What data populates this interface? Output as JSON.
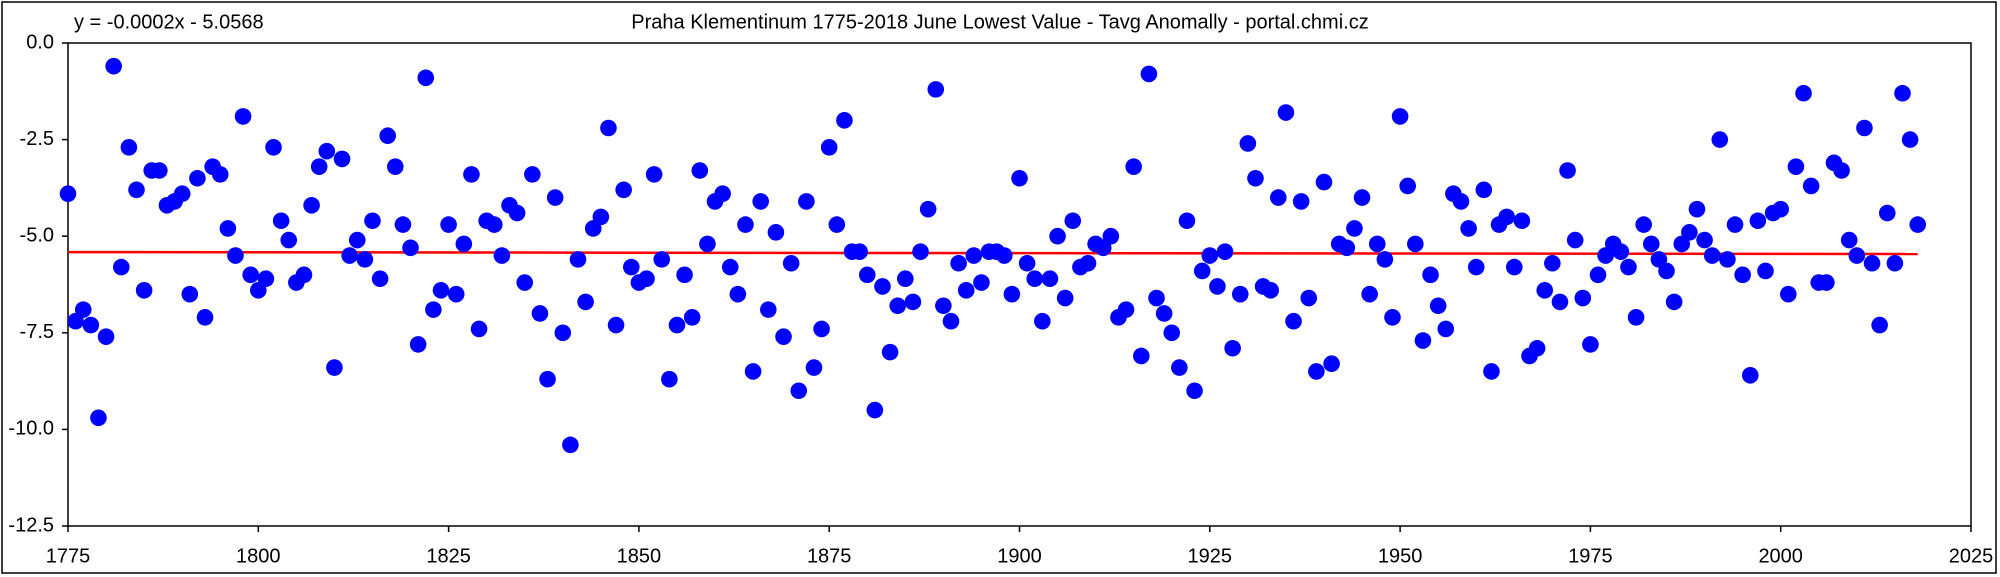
{
  "chart_data": {
    "type": "scatter",
    "title": "Praha Klementinum 1775-2018 June Lowest Value - Tavg Anomally - portal.chmi.cz",
    "series": [
      {
        "color": "#0000ff",
        "x": [
          1775,
          1776,
          1777,
          1778,
          1779,
          1780,
          1781,
          1782,
          1783,
          1784,
          1785,
          1786,
          1787,
          1788,
          1789,
          1790,
          1791,
          1792,
          1793,
          1794,
          1795,
          1796,
          1797,
          1798,
          1799,
          1800,
          1801,
          1802,
          1803,
          1804,
          1805,
          1806,
          1807,
          1808,
          1809,
          1810,
          1811,
          1812,
          1813,
          1814,
          1815,
          1816,
          1817,
          1818,
          1819,
          1820,
          1821,
          1822,
          1823,
          1824,
          1825,
          1826,
          1827,
          1828,
          1829,
          1830,
          1831,
          1832,
          1833,
          1834,
          1835,
          1836,
          1837,
          1838,
          1839,
          1840,
          1841,
          1842,
          1843,
          1844,
          1845,
          1846,
          1847,
          1848,
          1849,
          1850,
          1851,
          1852,
          1853,
          1854,
          1855,
          1856,
          1857,
          1858,
          1859,
          1860,
          1861,
          1862,
          1863,
          1864,
          1865,
          1866,
          1867,
          1868,
          1869,
          1870,
          1871,
          1872,
          1873,
          1874,
          1875,
          1876,
          1877,
          1878,
          1879,
          1880,
          1881,
          1882,
          1883,
          1884,
          1885,
          1886,
          1887,
          1888,
          1889,
          1890,
          1891,
          1892,
          1893,
          1894,
          1895,
          1896,
          1897,
          1898,
          1899,
          1900,
          1901,
          1902,
          1903,
          1904,
          1905,
          1906,
          1907,
          1908,
          1909,
          1910,
          1911,
          1912,
          1913,
          1914,
          1915,
          1916,
          1917,
          1918,
          1919,
          1920,
          1921,
          1922,
          1923,
          1924,
          1925,
          1926,
          1927,
          1928,
          1929,
          1930,
          1931,
          1932,
          1933,
          1934,
          1935,
          1936,
          1937,
          1938,
          1939,
          1940,
          1941,
          1942,
          1943,
          1944,
          1945,
          1946,
          1947,
          1948,
          1949,
          1950,
          1951,
          1952,
          1953,
          1954,
          1955,
          1956,
          1957,
          1958,
          1959,
          1960,
          1961,
          1962,
          1963,
          1964,
          1965,
          1966,
          1967,
          1968,
          1969,
          1970,
          1971,
          1972,
          1973,
          1974,
          1975,
          1976,
          1977,
          1978,
          1979,
          1980,
          1981,
          1982,
          1983,
          1984,
          1985,
          1986,
          1987,
          1988,
          1989,
          1990,
          1991,
          1992,
          1993,
          1994,
          1995,
          1996,
          1997,
          1998,
          1999,
          2000,
          2001,
          2002,
          2003,
          2004,
          2005,
          2006,
          2007,
          2008,
          2009,
          2010,
          2011,
          2012,
          2013,
          2014,
          2015,
          2016,
          2017,
          2018
        ],
        "values": [
          -3.9,
          -7.2,
          -6.9,
          -7.3,
          -9.7,
          -7.6,
          -0.6,
          -5.8,
          -2.7,
          -3.8,
          -6.4,
          -3.3,
          -3.3,
          -4.2,
          -4.1,
          -3.9,
          -6.5,
          -3.5,
          -7.1,
          -3.2,
          -3.4,
          -4.8,
          -5.5,
          -1.9,
          -6.0,
          -6.4,
          -6.1,
          -2.7,
          -4.6,
          -5.1,
          -6.2,
          -6.0,
          -4.2,
          -3.2,
          -2.8,
          -8.4,
          -3.0,
          -5.5,
          -5.1,
          -5.6,
          -4.6,
          -6.1,
          -2.4,
          -3.2,
          -4.7,
          -5.3,
          -7.8,
          -0.9,
          -6.9,
          -6.4,
          -4.7,
          -6.5,
          -5.2,
          -3.4,
          -7.4,
          -4.6,
          -4.7,
          -5.5,
          -4.2,
          -4.4,
          -6.2,
          -3.4,
          -7.0,
          -8.7,
          -4.0,
          -7.5,
          -10.4,
          -5.6,
          -6.7,
          -4.8,
          -4.5,
          -2.2,
          -7.3,
          -3.8,
          -5.8,
          -6.2,
          -6.1,
          -3.4,
          -5.6,
          -8.7,
          -7.3,
          -6.0,
          -7.1,
          -3.3,
          -5.2,
          -4.1,
          -3.9,
          -5.8,
          -6.5,
          -4.7,
          -8.5,
          -4.1,
          -6.9,
          -4.9,
          -7.6,
          -5.7,
          -9.0,
          -4.1,
          -8.4,
          -7.4,
          -2.7,
          -4.7,
          -2.0,
          -5.4,
          -5.4,
          -6.0,
          -9.5,
          -6.3,
          -8.0,
          -6.8,
          -6.1,
          -6.7,
          -5.4,
          -4.3,
          -1.2,
          -6.8,
          -7.2,
          -5.7,
          -6.4,
          -5.5,
          -6.2,
          -5.4,
          -5.4,
          -5.5,
          -6.5,
          -3.5,
          -5.7,
          -6.1,
          -7.2,
          -6.1,
          -5.0,
          -6.6,
          -4.6,
          -5.8,
          -5.7,
          -5.2,
          -5.3,
          -5.0,
          -7.1,
          -6.9,
          -3.2,
          -8.1,
          -0.8,
          -6.6,
          -7.0,
          -7.5,
          -8.4,
          -4.6,
          -9.0,
          -5.9,
          -5.5,
          -6.3,
          -5.4,
          -7.9,
          -6.5,
          -2.6,
          -3.5,
          -6.3,
          -6.4,
          -4.0,
          -1.8,
          -7.2,
          -4.1,
          -6.6,
          -8.5,
          -3.6,
          -8.3,
          -5.2,
          -5.3,
          -4.8,
          -4.0,
          -6.5,
          -5.2,
          -5.6,
          -7.1,
          -1.9,
          -3.7,
          -5.2,
          -7.7,
          -6.0,
          -6.8,
          -7.4,
          -3.9,
          -4.1,
          -4.8,
          -5.8,
          -3.8,
          -8.5,
          -4.7,
          -4.5,
          -5.8,
          -4.6,
          -8.1,
          -7.9,
          -6.4,
          -5.7,
          -6.7,
          -3.3,
          -5.1,
          -6.6,
          -7.8,
          -6.0,
          -5.5,
          -5.2,
          -5.4,
          -5.8,
          -7.1,
          -4.7,
          -5.2,
          -5.6,
          -5.9,
          -6.7,
          -5.2,
          -4.9,
          -4.3,
          -5.1,
          -5.5,
          -2.5,
          -5.6,
          -4.7,
          -6.0,
          -8.6,
          -4.6,
          -5.9,
          -4.4,
          -4.3,
          -6.5,
          -3.2,
          -1.3,
          -3.7,
          -6.2,
          -6.2,
          -3.1,
          -3.3,
          -5.1,
          -5.5,
          -2.2,
          -5.7,
          -7.3,
          -4.4,
          -5.7,
          -1.3,
          -2.5,
          -4.7
        ]
      }
    ],
    "trendline": {
      "label": "y = -0.0002x - 5.0568",
      "slope": -0.0002,
      "intercept": -5.0568,
      "color": "#ff0000"
    },
    "xlim": [
      1775,
      2025
    ],
    "xticks": [
      1775,
      1800,
      1825,
      1850,
      1875,
      1900,
      1925,
      1950,
      1975,
      2000,
      2025
    ],
    "ylim": [
      -12.5,
      0
    ],
    "yticks": [
      {
        "value": 0,
        "label": "0.0"
      },
      -2.5,
      {
        "value": -5,
        "label": "-5.0"
      },
      -7.5,
      {
        "value": -10,
        "label": "-10.0"
      },
      {
        "value": -12.5,
        "label": "-12.5"
      }
    ],
    "grid": false
  }
}
